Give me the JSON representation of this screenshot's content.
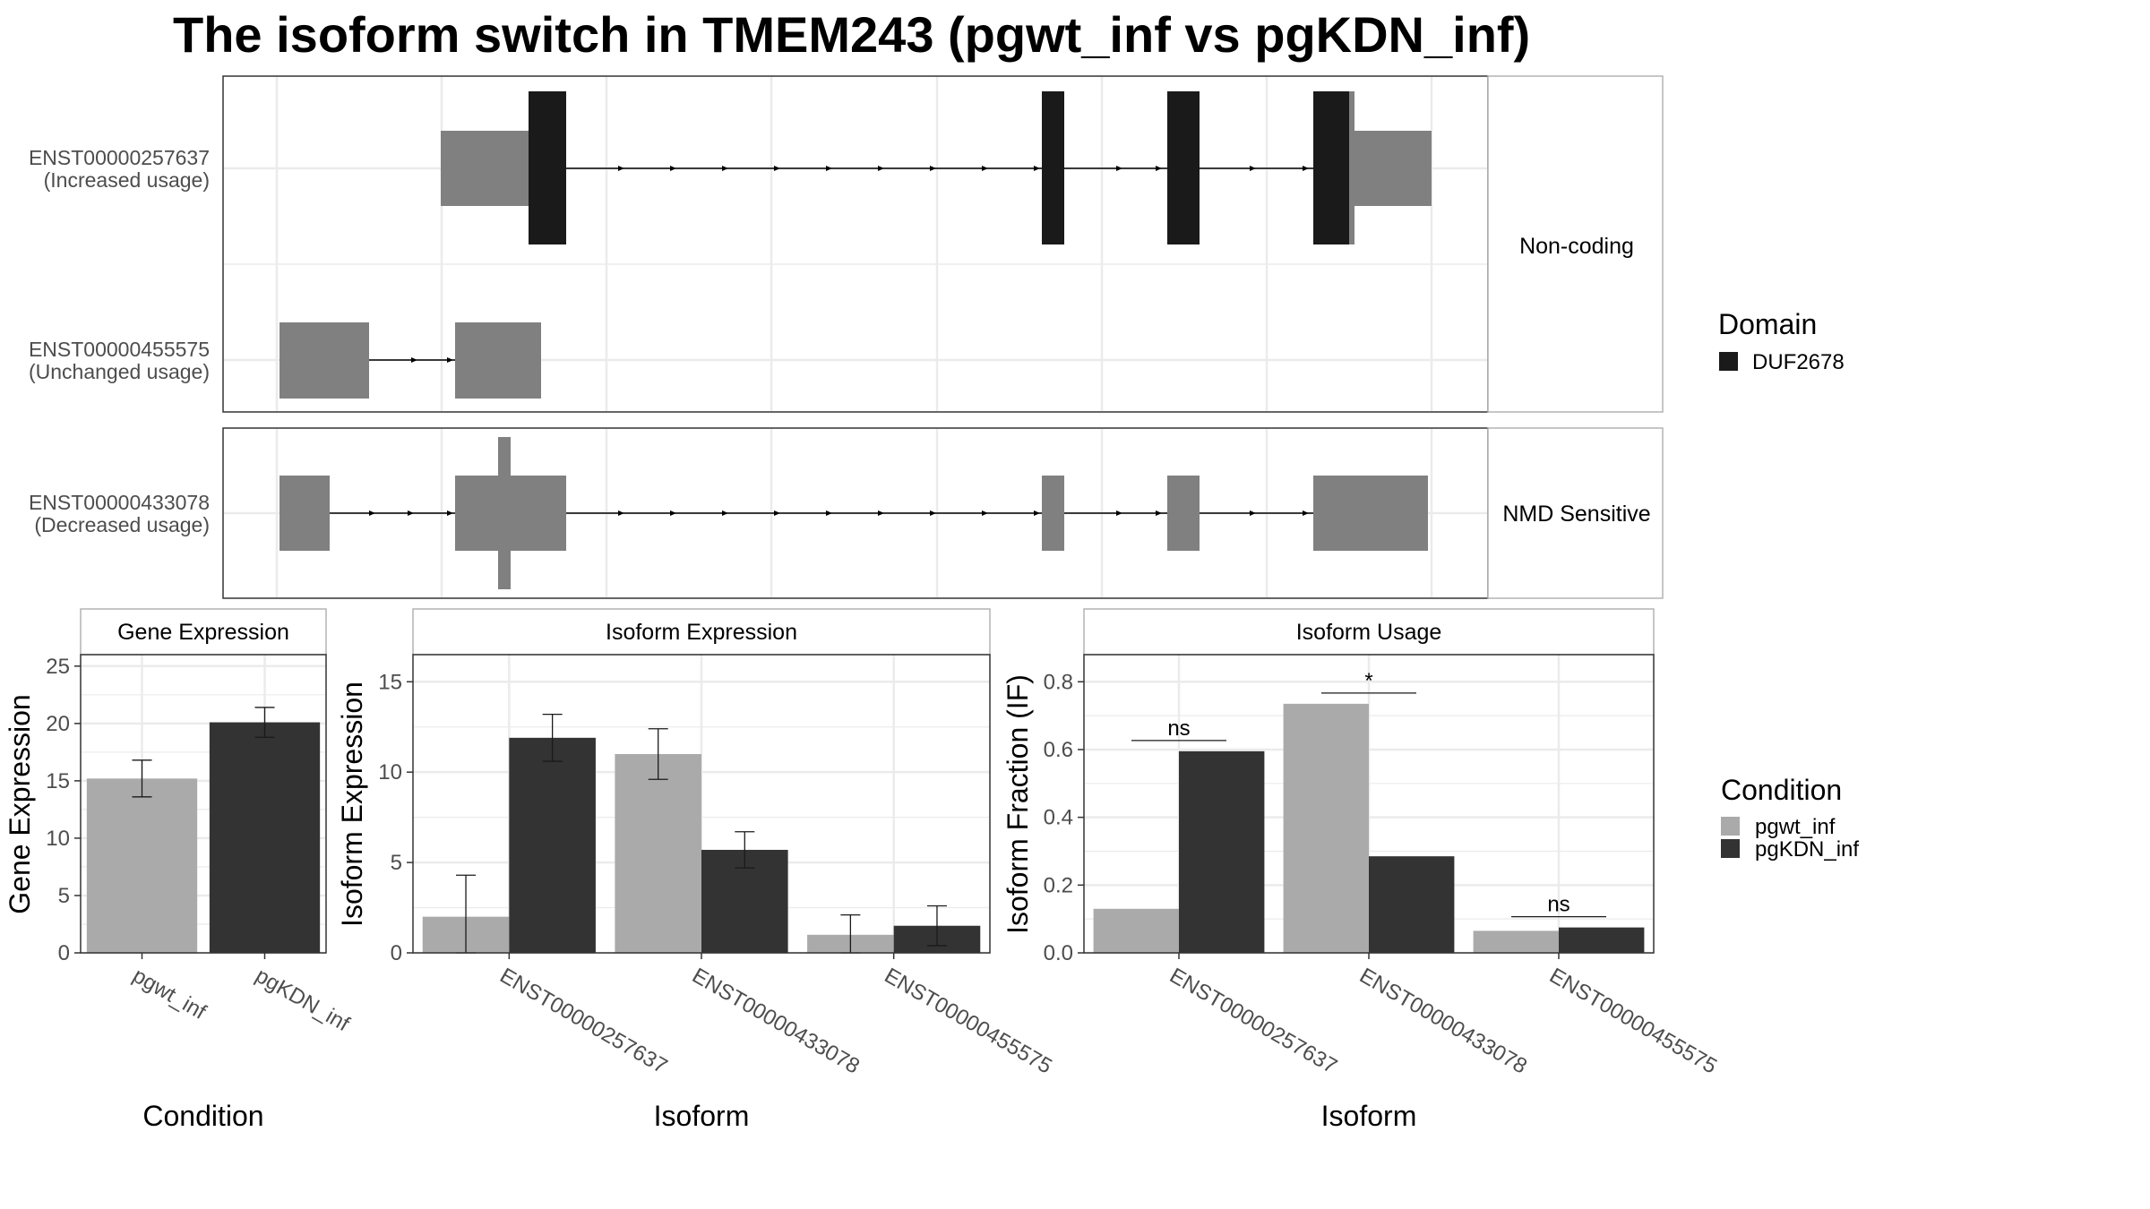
{
  "title": "The isoform switch in TMEM243 (pgwt_inf vs pgKDN_inf)",
  "colors": {
    "utr": "#808080",
    "domain": "#1a1a1a",
    "pgwt_inf": "#aaaaaa",
    "pgKDN_inf": "#333333",
    "grid": "#ebebeb",
    "panel_border": "#333333",
    "strip_border": "#b3b3b3"
  },
  "structure": {
    "facets": [
      {
        "label": "Non-coding",
        "isoforms": [
          "ENST00000257637",
          "ENST00000455575"
        ]
      },
      {
        "label": "NMD Sensitive",
        "isoforms": [
          "ENST00000433078"
        ]
      }
    ],
    "isoforms": [
      {
        "id": "ENST00000257637",
        "usage": "(Increased usage)"
      },
      {
        "id": "ENST00000455575",
        "usage": "(Unchanged usage)"
      },
      {
        "id": "ENST00000433078",
        "usage": "(Decreased usage)"
      }
    ]
  },
  "legend_domain": {
    "title": "Domain",
    "items": [
      {
        "label": "DUF2678",
        "color": "#1a1a1a"
      }
    ]
  },
  "legend_condition": {
    "title": "Condition",
    "items": [
      {
        "label": "pgwt_inf",
        "color": "#aaaaaa"
      },
      {
        "label": "pgKDN_inf",
        "color": "#333333"
      }
    ]
  },
  "chart_data": [
    {
      "type": "bar",
      "title": "Gene Expression",
      "xlabel": "Condition",
      "ylabel": "Gene Expression",
      "categories": [
        "pgwt_inf",
        "pgKDN_inf"
      ],
      "values": [
        15.2,
        20.1
      ],
      "error_low": [
        13.6,
        18.8
      ],
      "error_high": [
        16.8,
        21.4
      ],
      "ylim": [
        0,
        26
      ],
      "yticks": [
        0,
        5,
        10,
        15,
        20,
        25
      ]
    },
    {
      "type": "bar",
      "title": "Isoform Expression",
      "xlabel": "Isoform",
      "ylabel": "Isoform Expression",
      "categories": [
        "ENST00000257637",
        "ENST00000433078",
        "ENST00000455575"
      ],
      "series": [
        {
          "name": "pgwt_inf",
          "values": [
            2.0,
            11.0,
            1.0
          ],
          "error_low": [
            0.0,
            9.6,
            0.0
          ],
          "error_high": [
            4.3,
            12.4,
            2.1
          ]
        },
        {
          "name": "pgKDN_inf",
          "values": [
            11.9,
            5.7,
            1.5
          ],
          "error_low": [
            10.6,
            4.7,
            0.4
          ],
          "error_high": [
            13.2,
            6.7,
            2.6
          ]
        }
      ],
      "ylim": [
        0,
        16.5
      ],
      "yticks": [
        0,
        5,
        10,
        15
      ]
    },
    {
      "type": "bar",
      "title": "Isoform Usage",
      "xlabel": "Isoform",
      "ylabel": "Isoform Fraction (IF)",
      "categories": [
        "ENST00000257637",
        "ENST00000433078",
        "ENST00000455575"
      ],
      "series": [
        {
          "name": "pgwt_inf",
          "values": [
            0.13,
            0.735,
            0.065
          ]
        },
        {
          "name": "pgKDN_inf",
          "values": [
            0.595,
            0.285,
            0.075
          ]
        }
      ],
      "significance": [
        "ns",
        "*",
        "ns"
      ],
      "ylim": [
        0,
        0.88
      ],
      "yticks": [
        0.0,
        0.2,
        0.4,
        0.6,
        0.8
      ],
      "ytick_labels": [
        "0.0",
        "0.2",
        "0.4",
        "0.6",
        "0.8"
      ]
    }
  ]
}
